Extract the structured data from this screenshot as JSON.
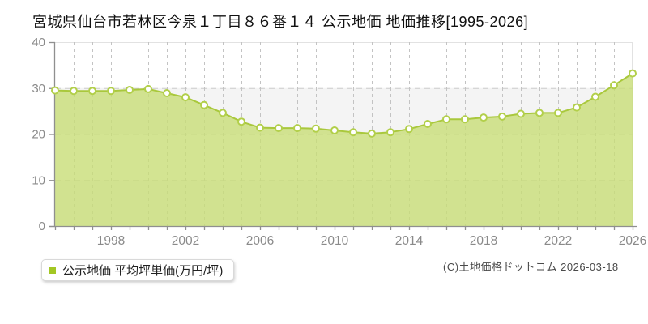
{
  "title": "宮城県仙台市若林区今泉１丁目８６番１４ 公示地価 地価推移[1995-2026]",
  "legend": {
    "marker_color": "#a3c724",
    "label": "公示地価 平均坪単価(万円/坪)"
  },
  "copyright": "(C)土地価格ドットコム 2026-03-18",
  "chart_data": {
    "type": "area",
    "title": "宮城県仙台市若林区今泉１丁目８６番１４ 公示地価 地価推移[1995-2026]",
    "series_name": "公示地価 平均坪単価(万円/坪)",
    "unit": "万円/坪",
    "x": [
      1995,
      1996,
      1997,
      1998,
      1999,
      2000,
      2001,
      2002,
      2003,
      2004,
      2005,
      2006,
      2007,
      2008,
      2009,
      2010,
      2011,
      2012,
      2013,
      2014,
      2015,
      2016,
      2017,
      2018,
      2019,
      2020,
      2021,
      2022,
      2023,
      2024,
      2025,
      2026
    ],
    "values": [
      29.5,
      29.4,
      29.4,
      29.4,
      29.6,
      29.8,
      28.9,
      28.0,
      26.3,
      24.6,
      22.7,
      21.4,
      21.3,
      21.3,
      21.2,
      20.8,
      20.4,
      20.1,
      20.4,
      21.1,
      22.2,
      23.2,
      23.2,
      23.6,
      23.8,
      24.4,
      24.6,
      24.6,
      25.8,
      28.1,
      30.6,
      33.2
    ],
    "ylim": [
      0,
      40
    ],
    "yticks": [
      0,
      10,
      20,
      30,
      40
    ],
    "xtick_labels": [
      1998,
      2002,
      2006,
      2010,
      2014,
      2018,
      2022,
      2026
    ],
    "grid": true,
    "legend_position": "bottom-left",
    "colors": {
      "line": "#a9c83c",
      "fill": "#c8dd77",
      "marker_fill": "#ffffff",
      "marker_stroke": "#b2cf4a",
      "alt_band": "#f4f4f4",
      "grid_v": "#c3c3c3",
      "grid_h": "#cccccc",
      "plot_border": "#e2e2e2",
      "axis": "#8f8f8f",
      "tick_text": "#8a8a8a"
    }
  }
}
